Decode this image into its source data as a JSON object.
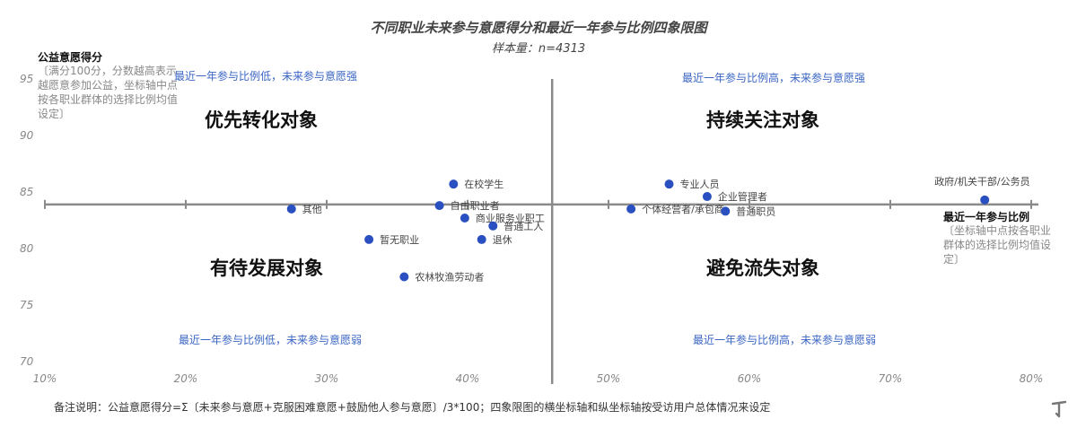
{
  "chart_data": {
    "type": "scatter",
    "title": "不同职业未来参与意愿得分和最近一年参与比例四象限图",
    "subtitle": "样本量：n=4313",
    "xlabel": "最近一年参与比例",
    "xlabel_note": "〔坐标轴中点按各职业群体的选择比例均值设定〕",
    "ylabel": "公益意愿得分",
    "ylabel_note": "〔满分100分，分数越高表示越愿意参加公益，坐标轴中点按各职业群体的选择比例均值设定〕",
    "xlim": [
      0.1,
      0.8
    ],
    "ylim": [
      70,
      95
    ],
    "x_ticks": [
      0.1,
      0.2,
      0.3,
      0.4,
      0.5,
      0.6,
      0.7,
      0.8
    ],
    "x_tick_labels": [
      "10%",
      "20%",
      "30%",
      "40%",
      "50%",
      "60%",
      "70%",
      "80%"
    ],
    "y_ticks": [
      70,
      75,
      80,
      85,
      90,
      95
    ],
    "y_tick_labels": [
      "70",
      "75",
      "80",
      "85",
      "90",
      "95"
    ],
    "x_center": 0.46,
    "y_center": 83.9,
    "grid": false,
    "point_color": "#2a4fc0",
    "points": [
      {
        "label": "其他",
        "x": 0.275,
        "y": 83.5
      },
      {
        "label": "暂无职业",
        "x": 0.33,
        "y": 80.8
      },
      {
        "label": "农林牧渔劳动者",
        "x": 0.355,
        "y": 77.5
      },
      {
        "label": "在校学生",
        "x": 0.39,
        "y": 85.7
      },
      {
        "label": "自由职业者",
        "x": 0.38,
        "y": 83.8
      },
      {
        "label": "商业服务业职工",
        "x": 0.398,
        "y": 82.7
      },
      {
        "label": "普通工人",
        "x": 0.418,
        "y": 82.0
      },
      {
        "label": "退休",
        "x": 0.41,
        "y": 80.8
      },
      {
        "label": "专业人员",
        "x": 0.543,
        "y": 85.7
      },
      {
        "label": "企业管理者",
        "x": 0.57,
        "y": 84.6
      },
      {
        "label": "个体经营者/承包商",
        "x": 0.516,
        "y": 83.5
      },
      {
        "label": "普通职员",
        "x": 0.583,
        "y": 83.3
      },
      {
        "label": "政府/机关干部/公务员",
        "x": 0.767,
        "y": 84.3
      }
    ],
    "quadrants": {
      "top_left": {
        "title": "优先转化对象",
        "desc": "最近一年参与比例低，未来参与意愿强"
      },
      "top_right": {
        "title": "持续关注对象",
        "desc": "最近一年参与比例高，未来参与意愿强"
      },
      "bottom_left": {
        "title": "有待发展对象",
        "desc": "最近一年参与比例低，未来参与意愿弱"
      },
      "bottom_right": {
        "title": "避免流失对象",
        "desc": "最近一年参与比例高，未来参与意愿弱"
      }
    }
  },
  "footnote": "备注说明：公益意愿得分=Σ〔未来参与意愿+克服困难意愿+鼓励他人参与意愿〕/3*100；四象限图的横坐标轴和纵坐标轴按受访用户总体情况来设定",
  "watermark_icon": "brand-mark-icon"
}
